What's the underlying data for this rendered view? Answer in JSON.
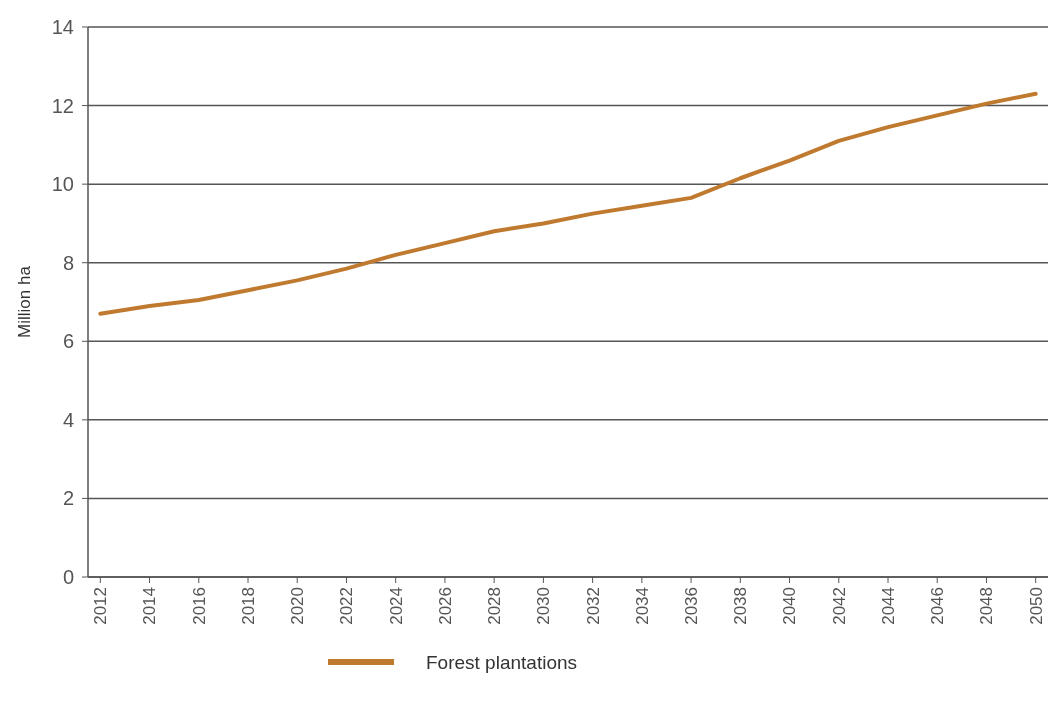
{
  "chart_data": {
    "type": "line",
    "ylabel": "Million ha",
    "x": [
      2012,
      2014,
      2016,
      2018,
      2020,
      2022,
      2024,
      2026,
      2028,
      2030,
      2032,
      2034,
      2036,
      2038,
      2040,
      2042,
      2044,
      2046,
      2048,
      2050
    ],
    "series": [
      {
        "name": "Forest plantations",
        "color": "#c07a30",
        "values": [
          6.7,
          6.9,
          7.05,
          7.3,
          7.55,
          7.85,
          8.2,
          8.5,
          8.8,
          9.0,
          9.25,
          9.45,
          9.65,
          10.15,
          10.6,
          11.1,
          11.45,
          11.75,
          12.05,
          12.3
        ]
      }
    ],
    "xlim": [
      2011.5,
      2050.5
    ],
    "xticks": [
      2012,
      2014,
      2016,
      2018,
      2020,
      2022,
      2024,
      2026,
      2028,
      2030,
      2032,
      2034,
      2036,
      2038,
      2040,
      2042,
      2044,
      2046,
      2048,
      2050
    ],
    "ylim": [
      0,
      14
    ],
    "yticks": [
      0,
      2,
      4,
      6,
      8,
      10,
      12,
      14
    ],
    "grid": "y",
    "legend": "bottom",
    "line_style": "solid",
    "marker": "none"
  }
}
